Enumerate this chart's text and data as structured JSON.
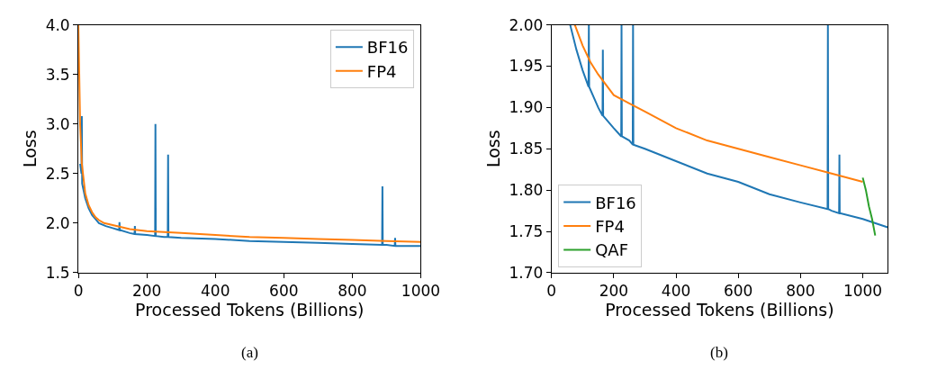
{
  "chart_data": [
    {
      "type": "line",
      "xlabel": "Processed Tokens (Billions)",
      "ylabel": "Loss",
      "annotations": [
        "(a)"
      ],
      "legend": "top right",
      "grid": false,
      "xlim": [
        0,
        1000
      ],
      "ylim": [
        1.5,
        4.0
      ],
      "xticks": [
        0,
        200,
        400,
        600,
        800,
        1000
      ],
      "yticks": [
        {
          "value": 1.5,
          "label": "1.5"
        },
        {
          "value": 2.0,
          "label": "2.0"
        },
        {
          "value": 2.5,
          "label": "2.5"
        },
        {
          "value": 3.0,
          "label": "3.0"
        },
        {
          "value": 3.5,
          "label": "3.5"
        },
        {
          "value": 4.0,
          "label": "4.0"
        }
      ],
      "series": [
        {
          "name": "BF16",
          "color": "#1f77b4",
          "x": [
            5,
            9,
            10,
            11,
            20,
            30,
            40,
            50,
            60,
            80,
            100,
            119,
            120,
            121,
            150,
            164,
            165,
            166,
            200,
            224,
            225,
            226,
            250,
            261,
            262,
            263,
            300,
            400,
            500,
            600,
            700,
            800,
            887,
            888,
            889,
            900,
            924,
            925,
            926,
            1000
          ],
          "values": [
            2.6,
            2.5,
            3.08,
            2.4,
            2.25,
            2.15,
            2.08,
            2.04,
            2.0,
            1.97,
            1.95,
            1.93,
            2.01,
            1.93,
            1.9,
            1.89,
            1.97,
            1.89,
            1.88,
            1.87,
            3.0,
            1.87,
            1.86,
            1.86,
            2.69,
            1.86,
            1.85,
            1.84,
            1.82,
            1.81,
            1.8,
            1.79,
            1.78,
            2.37,
            1.78,
            1.78,
            1.77,
            1.85,
            1.77,
            1.77
          ]
        },
        {
          "name": "FP4",
          "color": "#ff7f0e",
          "x": [
            0,
            5,
            10,
            20,
            30,
            40,
            50,
            60,
            75,
            100,
            125,
            150,
            200,
            250,
            300,
            400,
            500,
            600,
            700,
            800,
            900,
            1000
          ],
          "values": [
            4.0,
            3.0,
            2.6,
            2.3,
            2.18,
            2.11,
            2.06,
            2.03,
            2.0,
            1.98,
            1.96,
            1.94,
            1.92,
            1.91,
            1.9,
            1.88,
            1.86,
            1.85,
            1.84,
            1.83,
            1.82,
            1.81
          ]
        }
      ]
    },
    {
      "type": "line",
      "xlabel": "Processed Tokens (Billions)",
      "ylabel": "Loss",
      "annotations": [
        "(b)"
      ],
      "legend": "bottom left",
      "grid": false,
      "xlim": [
        0,
        1080
      ],
      "ylim": [
        1.7,
        2.0
      ],
      "xticks": [
        0,
        200,
        400,
        600,
        800,
        1000
      ],
      "yticks": [
        {
          "value": 1.7,
          "label": "1.70"
        },
        {
          "value": 1.75,
          "label": "1.75"
        },
        {
          "value": 1.8,
          "label": "1.80"
        },
        {
          "value": 1.85,
          "label": "1.85"
        },
        {
          "value": 1.9,
          "label": "1.90"
        },
        {
          "value": 1.95,
          "label": "1.95"
        },
        {
          "value": 2.0,
          "label": "2.00"
        }
      ],
      "series": [
        {
          "name": "BF16",
          "color": "#1f77b4",
          "x": [
            60,
            80,
            100,
            119,
            120,
            121,
            150,
            164,
            165,
            166,
            200,
            224,
            225,
            226,
            250,
            261,
            262,
            263,
            300,
            400,
            500,
            600,
            700,
            800,
            887,
            888,
            889,
            900,
            924,
            925,
            926,
            1000,
            1080
          ],
          "values": [
            2.0,
            1.97,
            1.945,
            1.925,
            2.0,
            1.925,
            1.9,
            1.89,
            1.97,
            1.89,
            1.875,
            1.865,
            2.0,
            1.865,
            1.86,
            1.855,
            2.0,
            1.855,
            1.85,
            1.835,
            1.82,
            1.81,
            1.795,
            1.785,
            1.777,
            2.0,
            1.777,
            1.775,
            1.772,
            1.843,
            1.772,
            1.765,
            1.755
          ]
        },
        {
          "name": "FP4",
          "color": "#ff7f0e",
          "x": [
            75,
            100,
            125,
            150,
            200,
            250,
            300,
            400,
            500,
            600,
            700,
            800,
            900,
            1000
          ],
          "values": [
            2.0,
            1.975,
            1.955,
            1.94,
            1.915,
            1.905,
            1.895,
            1.875,
            1.86,
            1.85,
            1.84,
            1.83,
            1.82,
            1.81
          ]
        },
        {
          "name": "QAF",
          "color": "#2ca02c",
          "x": [
            1000,
            1010,
            1020,
            1030,
            1040
          ],
          "values": [
            1.815,
            1.8,
            1.78,
            1.765,
            1.745
          ]
        }
      ]
    }
  ]
}
